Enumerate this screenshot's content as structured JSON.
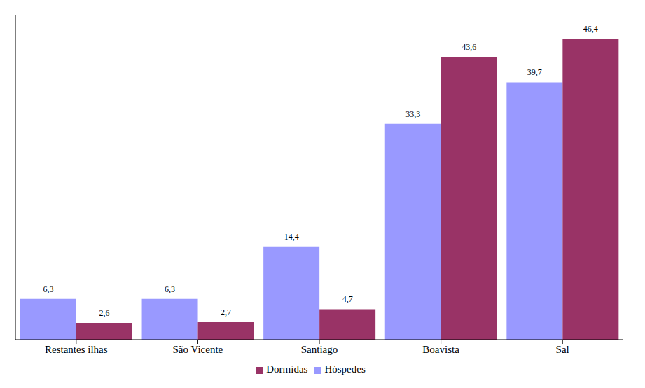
{
  "chart_data": {
    "type": "bar",
    "categories": [
      "Restantes ilhas",
      "São Vicente",
      "Santiago",
      "Boavista",
      "Sal"
    ],
    "series": [
      {
        "name": "Hóspedes",
        "color": "#9999ff",
        "values": [
          6.3,
          6.3,
          14.4,
          33.3,
          39.7
        ],
        "value_labels": [
          "6,3",
          "6,3",
          "14,4",
          "33,3",
          "39,7"
        ]
      },
      {
        "name": "Dormidas",
        "color": "#993366",
        "values": [
          2.6,
          2.7,
          4.7,
          43.6,
          46.4
        ],
        "value_labels": [
          "2,6",
          "2,7",
          "4,7",
          "43,6",
          "46,4"
        ]
      }
    ],
    "ylim": [
      0,
      50
    ],
    "grid": false,
    "legend": "bottom",
    "data_labels": true,
    "tick_labels": "x"
  }
}
